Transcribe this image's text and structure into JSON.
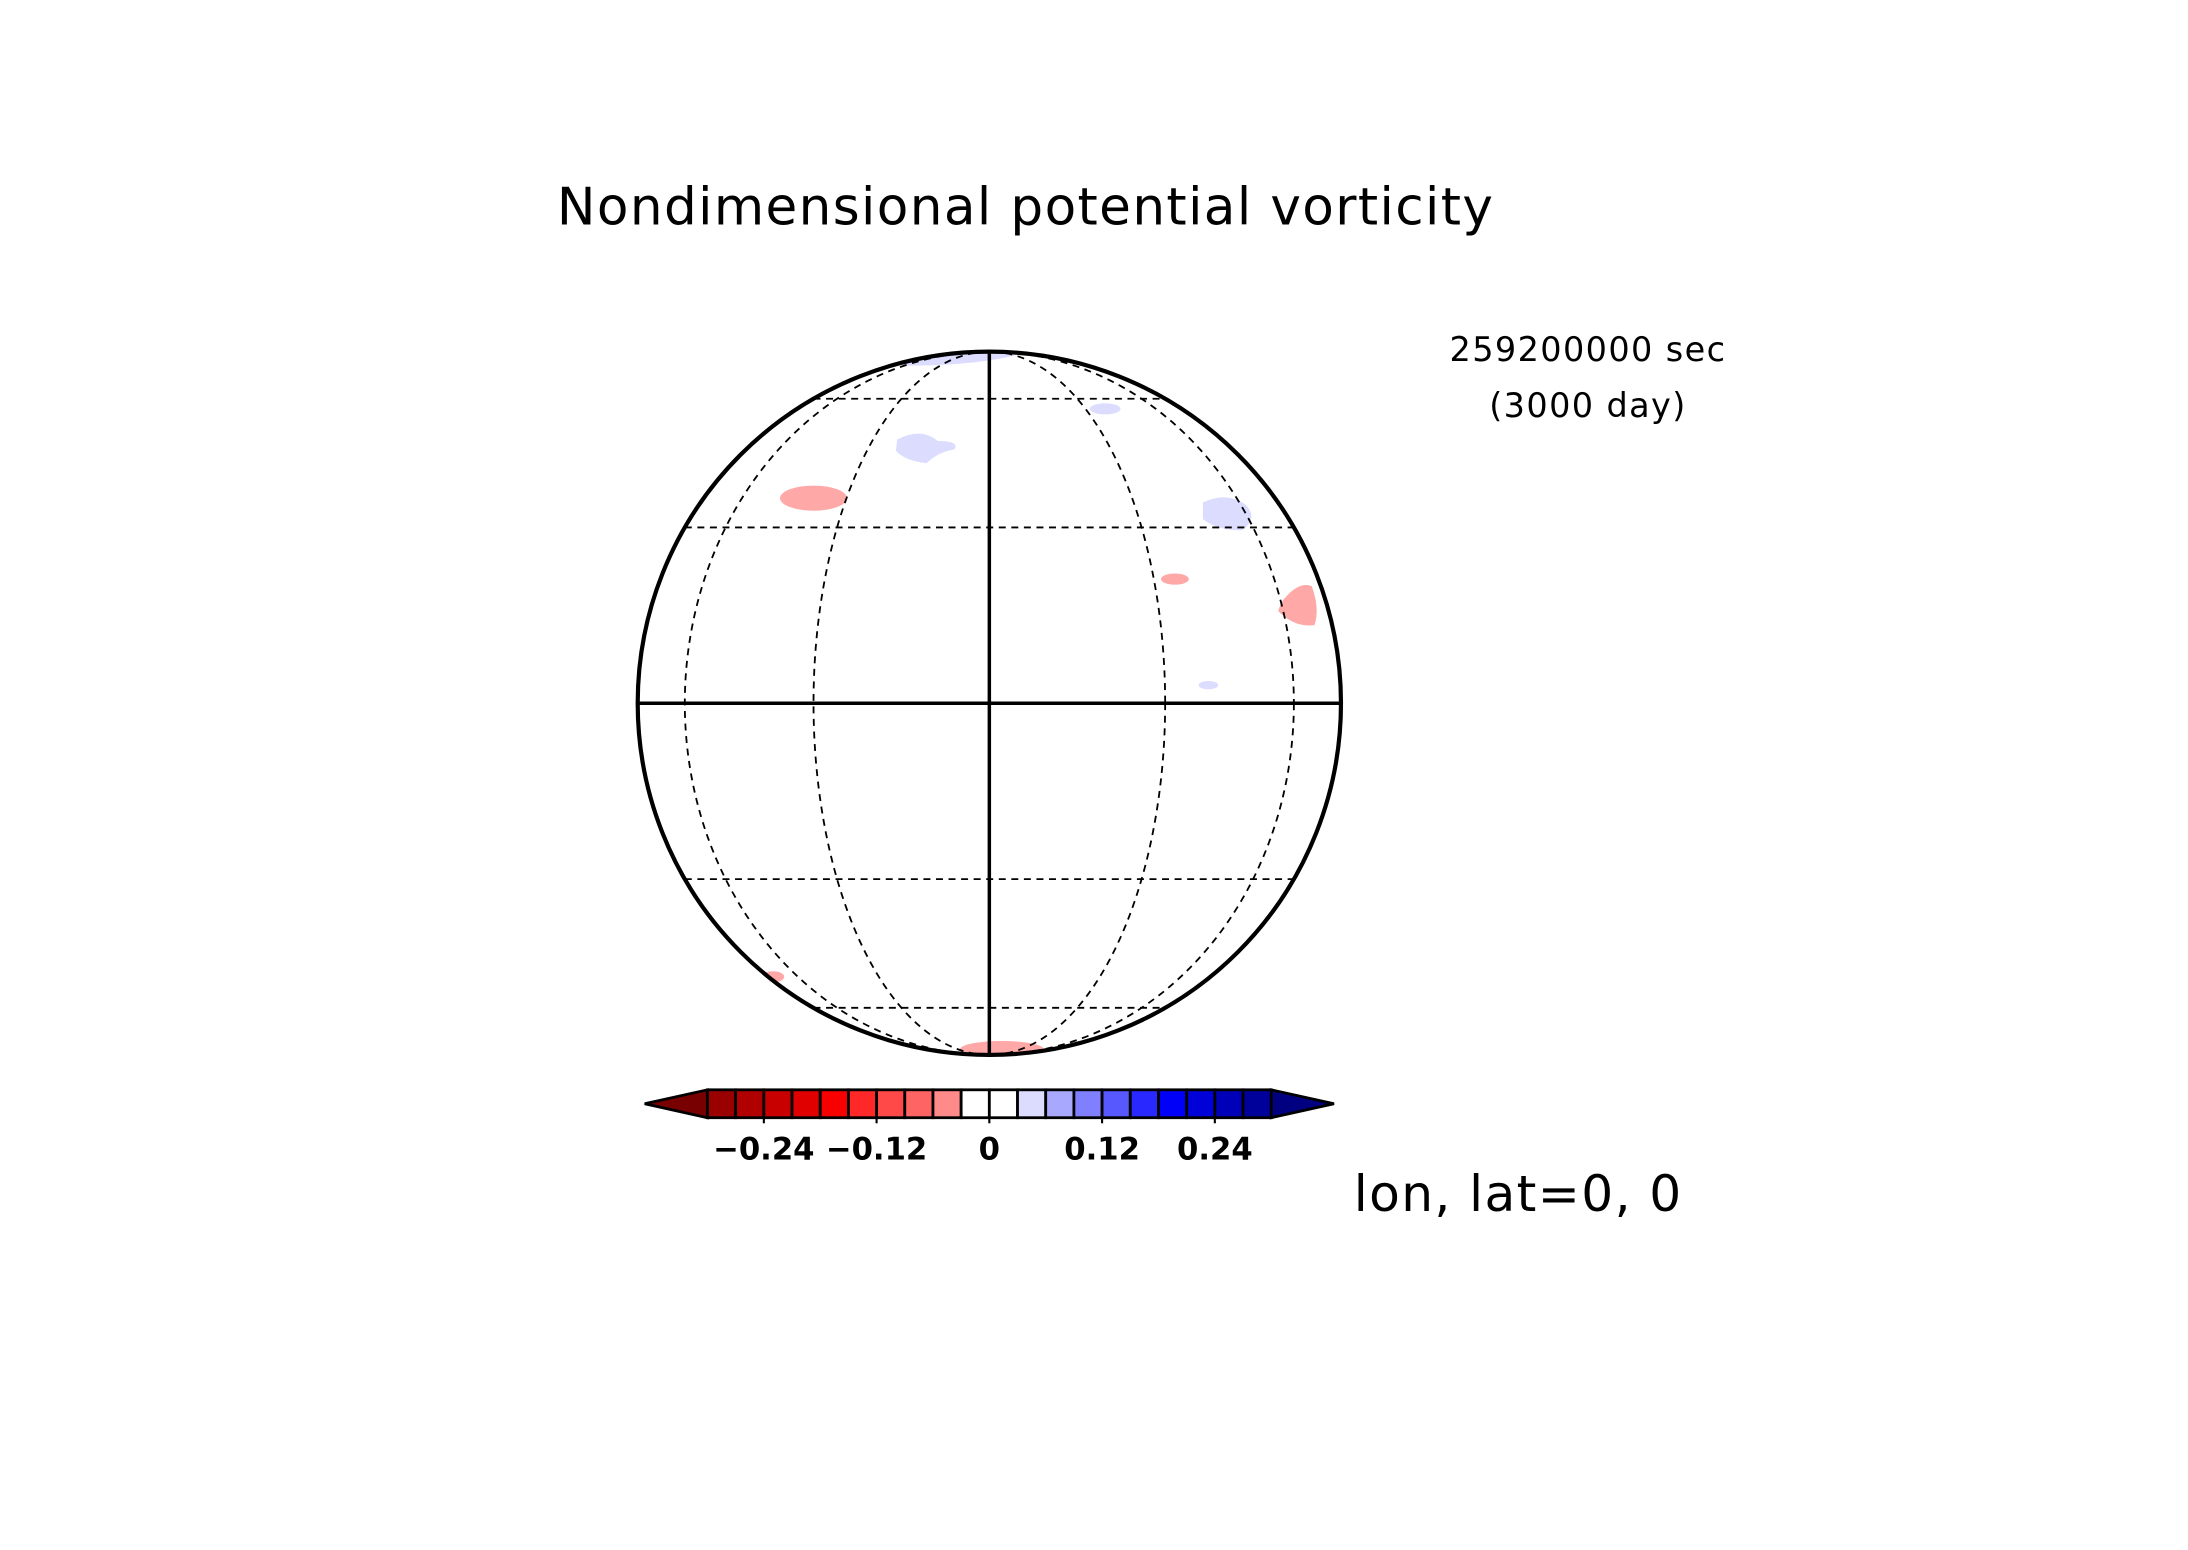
{
  "chart_data": {
    "type": "map",
    "title": "Nondimensional potential vorticity",
    "time_label": "259200000 sec",
    "time_label_days": "(3000 day)",
    "projection_label": "lon, lat=0, 0",
    "colorbar": {
      "clim": [
        -0.3,
        0.3
      ],
      "ticks": [
        {
          "value": -0.24,
          "label": "−0.24"
        },
        {
          "value": -0.12,
          "label": "−0.12"
        },
        0,
        0.12,
        0.24
      ],
      "colors": [
        "#9a0000",
        "#b00000",
        "#c80000",
        "#e00000",
        "#f80000",
        "#ff2828",
        "#ff4848",
        "#ff6464",
        "#ff8a8a",
        "#ffffff",
        "#ffffff",
        "#dcdcff",
        "#a8a8ff",
        "#8080ff",
        "#5858ff",
        "#2828ff",
        "#0000f8",
        "#0000d8",
        "#0000b8",
        "#00009a"
      ],
      "extend_colors": [
        "#780000",
        "#000080"
      ]
    }
  }
}
